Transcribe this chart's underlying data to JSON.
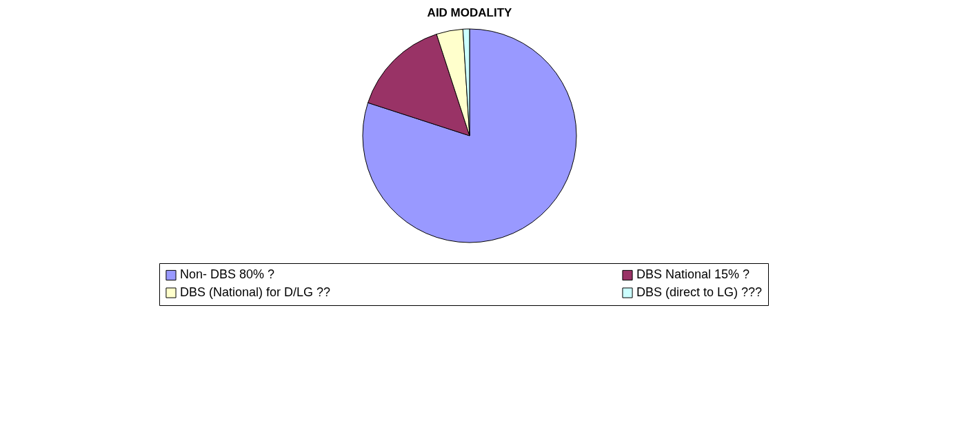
{
  "chart_data": {
    "type": "pie",
    "title": "AID MODALITY",
    "categories": [
      "Non- DBS 80% ?",
      "DBS National 15% ?",
      "DBS (National) for D/LG ??",
      "DBS (direct to LG) ???"
    ],
    "values": [
      80,
      15,
      4,
      1
    ],
    "colors": [
      "#9999ff",
      "#993366",
      "#ffffcc",
      "#ccffff"
    ],
    "legend": "bottom"
  }
}
